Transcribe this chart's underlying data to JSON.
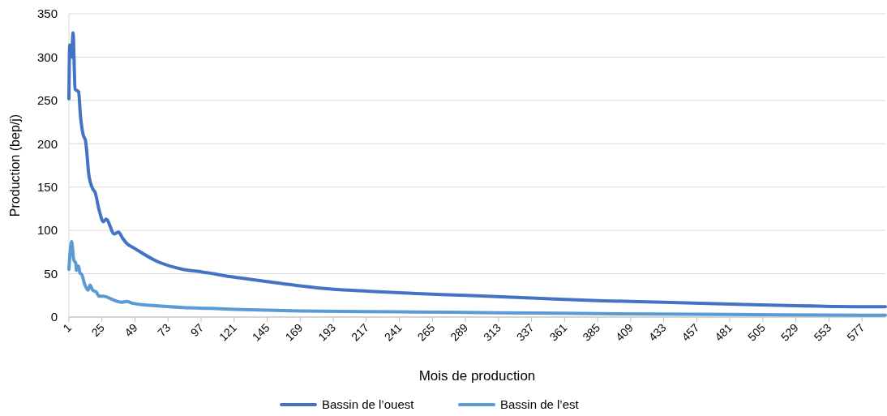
{
  "chart_data": {
    "type": "line",
    "xlabel": "Mois de production",
    "ylabel": "Production (bep/j)",
    "xlim": [
      1,
      594
    ],
    "xticks": [
      1,
      25,
      49,
      73,
      97,
      121,
      145,
      169,
      193,
      217,
      241,
      265,
      289,
      313,
      337,
      361,
      385,
      409,
      433,
      457,
      481,
      505,
      529,
      553,
      577
    ],
    "ylim": [
      0,
      350
    ],
    "yticks": [
      0,
      50,
      100,
      150,
      200,
      250,
      300,
      350
    ],
    "grid": "y",
    "legend": "bottom",
    "line_style": "solid",
    "marker": "none",
    "series": [
      {
        "name": "Bassin de l’ouest",
        "color": "#4472c4",
        "x": [
          1,
          1.6,
          3,
          4,
          5.5,
          8,
          9.4,
          11.4,
          13,
          14.3,
          15.3,
          18.3,
          20,
          23,
          26,
          28,
          34,
          37,
          40,
          43,
          49,
          64,
          84,
          98,
          121,
          145,
          169,
          193,
          217,
          241,
          289,
          337,
          385,
          433,
          481,
          529,
          577,
          594
        ],
        "values": [
          252,
          314,
          300,
          328,
          263,
          260,
          232,
          210,
          204,
          185,
          166,
          148,
          144,
          123,
          110,
          113,
          96,
          98,
          91,
          85,
          79,
          65,
          55,
          52,
          46,
          41,
          36,
          32,
          30,
          28,
          25,
          22,
          19,
          17,
          15,
          13,
          12,
          12
        ]
      },
      {
        "name": "Bassin de l’est",
        "color": "#5b9bd5",
        "x": [
          1,
          3,
          4.5,
          6,
          6.5,
          8,
          9,
          10.4,
          12.4,
          15,
          16.3,
          18.3,
          20.8,
          23,
          26,
          33,
          39,
          43,
          47,
          64,
          84,
          104,
          121,
          169,
          241,
          313,
          385,
          481,
          577,
          594
        ],
        "values": [
          55,
          87,
          66,
          62,
          54,
          59,
          51,
          49,
          38,
          31,
          37,
          31,
          29,
          24,
          24,
          20,
          17,
          18,
          16,
          13,
          11,
          10,
          9,
          7,
          6,
          5,
          4,
          3,
          2,
          2
        ]
      }
    ]
  }
}
